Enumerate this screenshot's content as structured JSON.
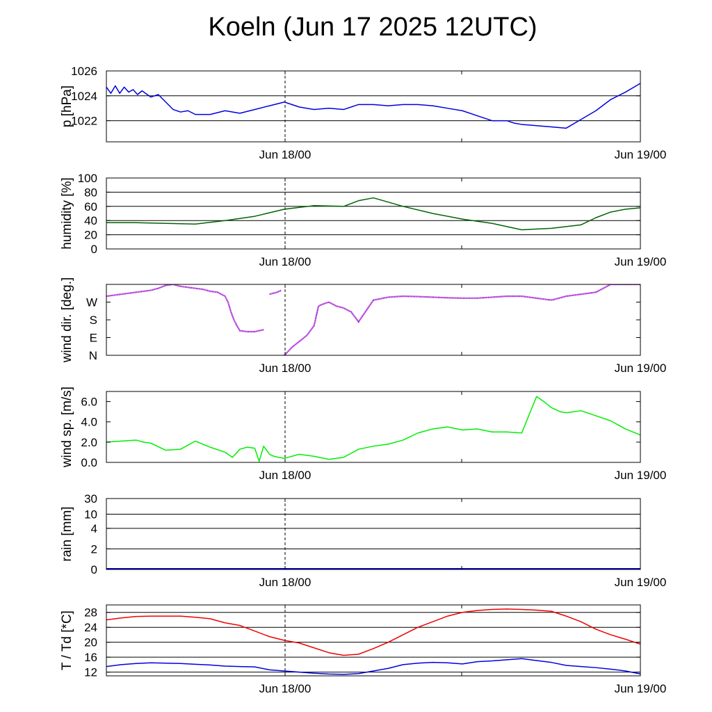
{
  "title": "Koeln (Jun 17 2025 12UTC)",
  "x_ticks": [
    "Jun 18/00",
    "Jun 19/00"
  ],
  "chart_data": [
    {
      "type": "line",
      "ylabel": "p [hPa]",
      "ylim": [
        1020.3,
        1026
      ],
      "yticks": [
        1022,
        1024,
        1026
      ],
      "ytick_labels": [
        "1022",
        "1024",
        "1026"
      ],
      "grid_y": [
        1022,
        1024
      ],
      "x_hours": [
        0,
        36
      ],
      "x": [
        0,
        0.3,
        0.6,
        0.9,
        1.2,
        1.5,
        1.8,
        2.1,
        2.4,
        3,
        3.5,
        4,
        4.5,
        5,
        5.5,
        6,
        7,
        8,
        9,
        10,
        11,
        12,
        13,
        14,
        15,
        16,
        17,
        18,
        19,
        20,
        21,
        22,
        23,
        24,
        25,
        26,
        27,
        27.5,
        28,
        29,
        30,
        31,
        32,
        33,
        34,
        35,
        36
      ],
      "series": [
        {
          "color": "#0000dd",
          "values": [
            1024.7,
            1024.2,
            1024.8,
            1024.2,
            1024.7,
            1024.3,
            1024.5,
            1024.1,
            1024.4,
            1023.9,
            1024.1,
            1023.5,
            1022.9,
            1022.7,
            1022.8,
            1022.5,
            1022.5,
            1022.8,
            1022.6,
            1022.9,
            1023.2,
            1023.5,
            1023.1,
            1022.9,
            1023.0,
            1022.9,
            1023.3,
            1023.3,
            1023.2,
            1023.3,
            1023.3,
            1023.2,
            1023.0,
            1022.8,
            1022.4,
            1022.0,
            1022.0,
            1021.8,
            1021.7,
            1021.6,
            1021.5,
            1021.4,
            1022.1,
            1022.8,
            1023.7,
            1024.3,
            1025.0
          ]
        }
      ]
    },
    {
      "type": "line",
      "ylabel": "humidity [%]",
      "ylim": [
        0,
        100
      ],
      "yticks": [
        0,
        20,
        40,
        60,
        80,
        100
      ],
      "ytick_labels": [
        "0",
        "20",
        "40",
        "60",
        "80",
        "100"
      ],
      "grid_y": [
        20,
        40,
        60,
        80
      ],
      "x_hours": [
        0,
        36
      ],
      "x": [
        0,
        2,
        4,
        6,
        8,
        10,
        12,
        14,
        16,
        17,
        18,
        20,
        22,
        24,
        26,
        28,
        30,
        32,
        33,
        34,
        35,
        36
      ],
      "series": [
        {
          "color": "#006400",
          "values": [
            37,
            37,
            36,
            35,
            40,
            46,
            56,
            61,
            60,
            68,
            72,
            60,
            50,
            42,
            36,
            27,
            29,
            34,
            44,
            52,
            56,
            58
          ]
        }
      ]
    },
    {
      "type": "scatter",
      "ylabel": "wind dir. [deg.]",
      "ylim": [
        0,
        360
      ],
      "yticks": [
        0,
        90,
        180,
        270
      ],
      "ytick_labels": [
        "N",
        "E",
        "S",
        "W"
      ],
      "grid_y": [],
      "x_hours": [
        0,
        36
      ],
      "segments": [
        {
          "x": [
            0,
            1,
            2,
            3,
            4,
            5,
            6,
            7,
            8,
            9,
            10,
            11,
            12,
            13,
            14,
            15,
            16,
            17,
            18,
            19,
            20,
            21,
            22,
            23,
            24,
            25,
            26,
            27,
            28,
            29,
            30,
            31,
            32,
            33,
            34,
            35,
            36
          ],
          "values": [
            300,
            310,
            320,
            330,
            340,
            345,
            340,
            330,
            320,
            290,
            250,
            200,
            200,
            210,
            250,
            250,
            250,
            260,
            290,
            300,
            310,
            320,
            330,
            340,
            350,
            355,
            360,
            350,
            340,
            330,
            320,
            330,
            340,
            350,
            360,
            360,
            360
          ]
        },
        {
          "x": [
            10.5,
            11.5
          ],
          "values": [
            330,
            335
          ]
        }
      ],
      "series": [
        {
          "color": "#9900cc",
          "x": [
            0,
            0.5,
            1,
            1.5,
            2,
            2.5,
            3,
            3.5,
            4,
            4.5,
            5,
            5.5,
            6,
            6.5,
            7,
            7.5,
            8,
            8.2,
            8.4,
            8.6,
            8.8,
            9,
            9.5,
            10,
            10.3,
            10.6,
            11,
            11.5,
            11.8,
            12,
            12.5,
            13,
            13.5,
            14,
            14.3,
            14.6,
            15,
            15.5,
            16,
            16.5,
            17,
            18,
            19,
            20,
            21,
            22,
            23,
            24,
            25,
            26,
            27,
            28,
            29,
            30,
            31,
            32,
            33,
            34,
            35,
            36
          ],
          "values": [
            300,
            305,
            310,
            315,
            320,
            325,
            330,
            340,
            355,
            360,
            350,
            345,
            340,
            335,
            325,
            320,
            300,
            270,
            220,
            180,
            150,
            125,
            120,
            120,
            125,
            130,
            310,
            320,
            330,
            0,
            40,
            70,
            100,
            150,
            250,
            260,
            270,
            250,
            240,
            220,
            170,
            280,
            295,
            300,
            298,
            295,
            292,
            290,
            290,
            295,
            300,
            300,
            290,
            280,
            300,
            310,
            320,
            360,
            360,
            360
          ]
        }
      ]
    },
    {
      "type": "line",
      "ylabel": "wind sp. [m/s]",
      "ylim": [
        0,
        7
      ],
      "yticks": [
        0,
        2,
        4,
        6
      ],
      "ytick_labels": [
        "0.0",
        "2.0",
        "4.0",
        "6.0"
      ],
      "grid_y": [],
      "x_hours": [
        0,
        36
      ],
      "x": [
        0,
        1,
        2,
        2.5,
        3,
        4,
        5,
        6,
        7,
        8,
        8.5,
        9,
        9.5,
        10,
        10.3,
        10.6,
        11,
        11.3,
        11.6,
        12,
        13,
        14,
        15,
        16,
        17,
        18,
        19,
        20,
        21,
        22,
        23,
        24,
        25,
        26,
        27,
        28,
        29,
        29.5,
        30,
        30.3,
        30.6,
        31,
        32,
        33,
        34,
        35,
        36
      ],
      "series": [
        {
          "color": "#00ee00",
          "values": [
            2.0,
            2.1,
            2.2,
            2.0,
            1.9,
            1.2,
            1.3,
            2.1,
            1.5,
            1.0,
            0.5,
            1.3,
            1.5,
            1.4,
            0.1,
            1.6,
            0.8,
            0.6,
            0.5,
            0.4,
            0.8,
            0.6,
            0.3,
            0.5,
            1.3,
            1.6,
            1.8,
            2.2,
            2.9,
            3.3,
            3.5,
            3.2,
            3.3,
            3.0,
            3.0,
            2.9,
            6.5,
            6.0,
            5.4,
            5.2,
            5.0,
            4.9,
            5.1,
            4.6,
            4.1,
            3.3,
            2.7
          ]
        }
      ]
    },
    {
      "type": "line",
      "ylabel": "rain [mm]",
      "ylim": [
        0,
        30
      ],
      "yticks": [
        0,
        2,
        4,
        10,
        30
      ],
      "ytick_labels": [
        "0",
        "2",
        "4",
        "10",
        "30"
      ],
      "grid_y": [
        2,
        4,
        10,
        30
      ],
      "x_hours": [
        0,
        36
      ],
      "series": [
        {
          "color": "#0000dd",
          "values": [
            0
          ]
        }
      ]
    },
    {
      "type": "line",
      "ylabel": "T / Td [*C]",
      "ylim": [
        11,
        30
      ],
      "yticks": [
        12,
        16,
        20,
        24,
        28
      ],
      "ytick_labels": [
        "12",
        "16",
        "20",
        "24",
        "28"
      ],
      "grid_y": [
        12,
        16,
        20,
        24,
        28
      ],
      "x_hours": [
        0,
        36
      ],
      "x": [
        0,
        1,
        2,
        3,
        4,
        5,
        6,
        7,
        8,
        9,
        10,
        11,
        12,
        13,
        14,
        15,
        16,
        17,
        18,
        19,
        20,
        21,
        22,
        23,
        24,
        25,
        26,
        27,
        28,
        29,
        30,
        31,
        32,
        33,
        34,
        35,
        36
      ],
      "series": [
        {
          "color": "#ee0000",
          "values": [
            26.0,
            26.5,
            26.9,
            27.0,
            27.0,
            27.0,
            26.7,
            26.3,
            25.2,
            24.5,
            23.0,
            21.5,
            20.5,
            19.8,
            18.5,
            17.2,
            16.5,
            16.8,
            18.3,
            20.0,
            22.0,
            24.0,
            25.5,
            27.0,
            28.0,
            28.5,
            28.8,
            28.9,
            28.8,
            28.6,
            28.3,
            27.0,
            25.5,
            23.5,
            22.0,
            20.8,
            19.5
          ]
        },
        {
          "color": "#0000dd",
          "values": [
            13.5,
            14.0,
            14.3,
            14.5,
            14.4,
            14.3,
            14.1,
            13.9,
            13.6,
            13.5,
            13.4,
            12.6,
            12.3,
            12.0,
            11.7,
            11.5,
            11.4,
            11.6,
            12.3,
            13.0,
            14.0,
            14.4,
            14.6,
            14.5,
            14.2,
            14.8,
            15.0,
            15.3,
            15.6,
            15.1,
            14.6,
            13.8,
            13.5,
            13.2,
            12.8,
            12.3,
            11.5
          ]
        }
      ]
    }
  ]
}
